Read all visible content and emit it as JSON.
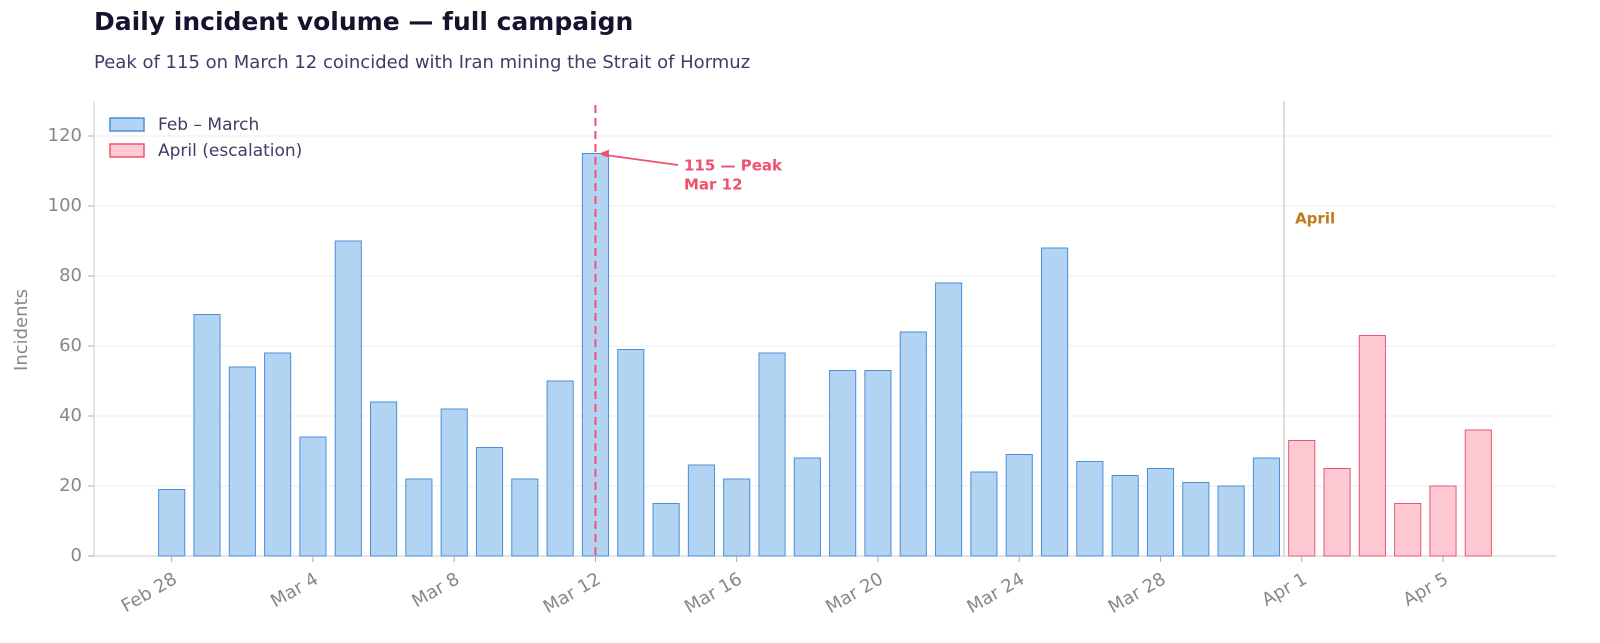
{
  "chart_data": {
    "type": "bar",
    "title": "Daily incident volume — full campaign",
    "subtitle": "Peak of 115 on March 12 coincided with Iran mining the Strait of Hormuz",
    "y_label": "Incidents",
    "categories": [
      "Feb 28",
      null,
      null,
      null,
      "Mar 4",
      null,
      null,
      null,
      "Mar 8",
      null,
      null,
      null,
      "Mar 12",
      null,
      null,
      null,
      "Mar 16",
      null,
      null,
      null,
      "Mar 20",
      null,
      null,
      null,
      "Mar 24",
      null,
      null,
      null,
      "Mar 28",
      null,
      null,
      null,
      "Apr 1",
      null,
      null,
      null,
      "Apr 5",
      null
    ],
    "series": [
      {
        "name": "Feb – March",
        "color": "#b3d3f3",
        "edge_color": "#4a90d9",
        "values": [
          19,
          69,
          54,
          58,
          34,
          90,
          44,
          22,
          42,
          31,
          22,
          50,
          115,
          59,
          15,
          26,
          22,
          58,
          28,
          53,
          53,
          64,
          78,
          24,
          29,
          88,
          27,
          23,
          25,
          21,
          20,
          28,
          null,
          null,
          null,
          null,
          null,
          null
        ]
      },
      {
        "name": "April (escalation)",
        "color": "#ffc9d3",
        "edge_color": "#e8566f",
        "values": [
          null,
          null,
          null,
          null,
          null,
          null,
          null,
          null,
          null,
          null,
          null,
          null,
          null,
          null,
          null,
          null,
          null,
          null,
          null,
          null,
          null,
          null,
          null,
          null,
          null,
          null,
          null,
          null,
          null,
          null,
          null,
          null,
          33,
          25,
          63,
          15,
          20,
          36
        ]
      }
    ],
    "ylim": [
      0,
      130
    ],
    "yticks": [
      0,
      20,
      40,
      60,
      80,
      100,
      120
    ],
    "grid": true,
    "legend": "upper left",
    "peak_annotation": [
      "115 — Peak",
      "Mar 12"
    ],
    "divider_label": "April"
  }
}
